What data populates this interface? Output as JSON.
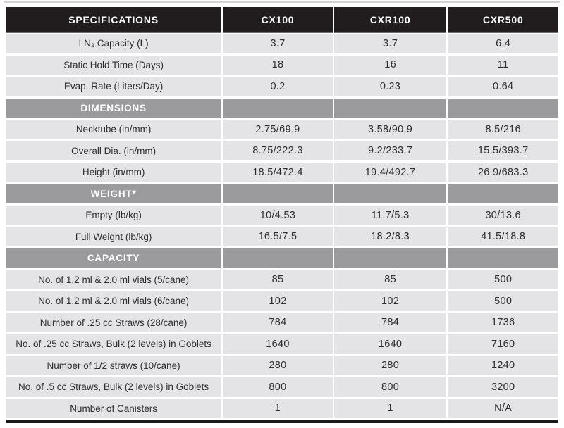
{
  "table": {
    "columns": [
      "SPECIFICATIONS",
      "CX100",
      "CXR100",
      "CXR500"
    ],
    "sections": [
      {
        "header": "",
        "rows": [
          {
            "label": "LN₂ Capacity (L)",
            "values": [
              "3.7",
              "3.7",
              "6.4"
            ]
          },
          {
            "label": "Static Hold Time (Days)",
            "values": [
              "18",
              "16",
              "11"
            ]
          },
          {
            "label": "Evap. Rate (Liters/Day)",
            "values": [
              "0.2",
              "0.23",
              "0.64"
            ]
          }
        ]
      },
      {
        "header": "DIMENSIONS",
        "rows": [
          {
            "label": "Necktube (in/mm)",
            "values": [
              "2.75/69.9",
              "3.58/90.9",
              "8.5/216"
            ]
          },
          {
            "label": "Overall Dia. (in/mm)",
            "values": [
              "8.75/222.3",
              "9.2/233.7",
              "15.5/393.7"
            ]
          },
          {
            "label": "Height (in/mm)",
            "values": [
              "18.5/472.4",
              "19.4/492.7",
              "26.9/683.3"
            ]
          }
        ]
      },
      {
        "header": "WEIGHT*",
        "rows": [
          {
            "label": "Empty (lb/kg)",
            "values": [
              "10/4.53",
              "11.7/5.3",
              "30/13.6"
            ]
          },
          {
            "label": "Full Weight (lb/kg)",
            "values": [
              "16.5/7.5",
              "18.2/8.3",
              "41.5/18.8"
            ]
          }
        ]
      },
      {
        "header": "CAPACITY",
        "rows": [
          {
            "label": "No. of 1.2 ml & 2.0 ml vials (5/cane)",
            "values": [
              "85",
              "85",
              "500"
            ]
          },
          {
            "label": "No. of 1.2 ml & 2.0 ml vials (6/cane)",
            "values": [
              "102",
              "102",
              "500"
            ]
          },
          {
            "label": "Number of .25 cc Straws (28/cane)",
            "values": [
              "784",
              "784",
              "1736"
            ]
          },
          {
            "label": "No. of .25 cc Straws, Bulk (2 levels) in Goblets",
            "values": [
              "1640",
              "1640",
              "7160"
            ]
          },
          {
            "label": "Number of 1/2 straws (10/cane)",
            "values": [
              "280",
              "280",
              "1240"
            ]
          },
          {
            "label": "No. of .5 cc Straws, Bulk (2 levels) in Goblets",
            "values": [
              "800",
              "800",
              "3200"
            ]
          },
          {
            "label": "Number of Canisters",
            "values": [
              "1",
              "1",
              "N/A"
            ]
          }
        ]
      }
    ]
  },
  "colors": {
    "header_bg": "#211d1e",
    "header_text": "#ffffff",
    "section_bg": "#9b9a9c",
    "section_text": "#ffffff",
    "row_bg": "#e4e3e5",
    "text": "#2e2d2f",
    "rule": "#1a1a1a"
  }
}
